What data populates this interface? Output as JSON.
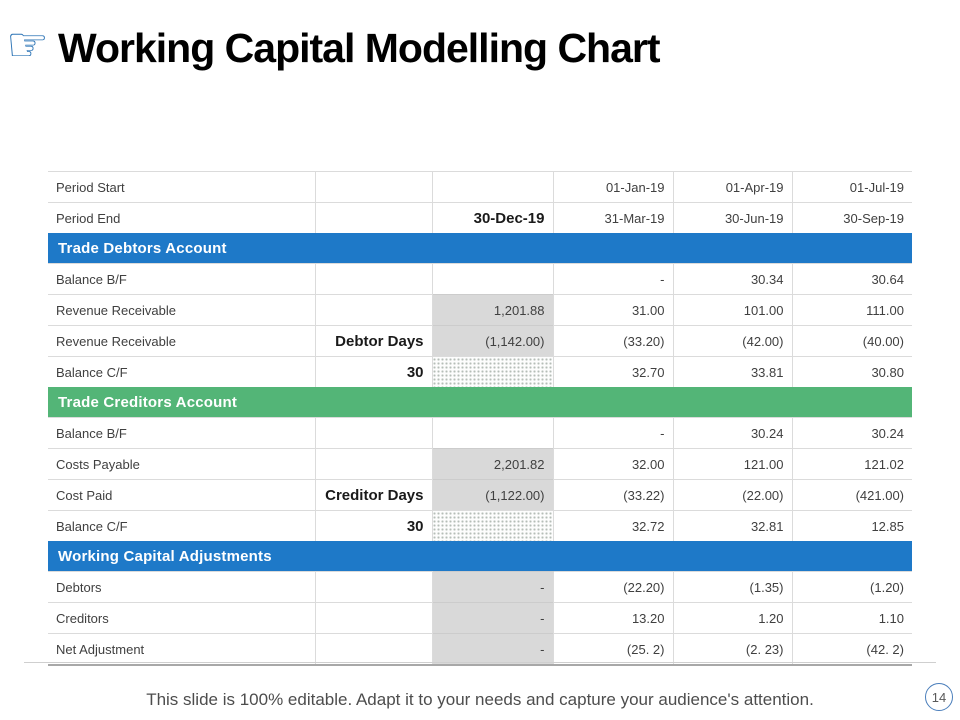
{
  "colors": {
    "header_blue": "#1E79C8",
    "header_green": "#53B577",
    "gray_cell": "#D9D9D9",
    "circle_border": "#4A7EBB",
    "icon_blue": "#2E75B6"
  },
  "title": {
    "text": "Working Capital Modelling Chart",
    "icon": "pointing-hand",
    "icon_glyph": "☞"
  },
  "table": {
    "rows": [
      {
        "label": "Period Start",
        "col2": "",
        "col3": "",
        "col3_style": "plain",
        "values": [
          "01-Jan-19",
          "01-Apr-19",
          "01-Jul-19"
        ]
      },
      {
        "label": "Period End",
        "col2": "",
        "col3": "30-Dec-19",
        "col3_bold": true,
        "col3_style": "plain",
        "values": [
          "31-Mar-19",
          "30-Jun-19",
          "30-Sep-19"
        ]
      },
      {
        "section": "Trade Debtors Account",
        "color": "blue"
      },
      {
        "label": "Balance B/F",
        "col2": "",
        "col3": "",
        "col3_style": "plain",
        "values": [
          "-",
          "30.34",
          "30.64"
        ]
      },
      {
        "label": "Revenue Receivable",
        "col2": "",
        "col3": "1,201.88",
        "col3_style": "gray",
        "values": [
          "31.00",
          "101.00",
          "111.00"
        ]
      },
      {
        "label": "Revenue Receivable",
        "col2": "Debtor Days",
        "col3": "(1,142.00)",
        "col3_style": "gray",
        "values": [
          "(33.20)",
          "(42.00)",
          "(40.00)"
        ]
      },
      {
        "label": "Balance C/F",
        "col2": "30",
        "col3": "",
        "col3_style": "dotted",
        "values": [
          "32.70",
          "33.81",
          "30.80"
        ]
      },
      {
        "section": "Trade Creditors Account",
        "color": "green"
      },
      {
        "label": "Balance B/F",
        "col2": "",
        "col3": "",
        "col3_style": "plain",
        "values": [
          "-",
          "30.24",
          "30.24"
        ]
      },
      {
        "label": "Costs Payable",
        "col2": "",
        "col3": "2,201.82",
        "col3_style": "gray",
        "values": [
          "32.00",
          "121.00",
          "121.02"
        ]
      },
      {
        "label": "Cost Paid",
        "col2": "Creditor Days",
        "col3": "(1,122.00)",
        "col3_style": "gray",
        "values": [
          "(33.22)",
          "(22.00)",
          "(421.00)"
        ]
      },
      {
        "label": "Balance C/F",
        "col2": "30",
        "col3": "",
        "col3_style": "dotted",
        "values": [
          "32.72",
          "32.81",
          "12.85"
        ]
      },
      {
        "section": "Working Capital Adjustments",
        "color": "blue"
      },
      {
        "label": "Debtors",
        "col2": "",
        "col3": "-",
        "col3_style": "gray",
        "values": [
          "(22.20)",
          "(1.35)",
          "(1.20)"
        ]
      },
      {
        "label": "Creditors",
        "col2": "",
        "col3": "-",
        "col3_style": "gray",
        "values": [
          "13.20",
          "1.20",
          "1.10"
        ]
      },
      {
        "label": "Net Adjustment",
        "col2": "",
        "col3": "-",
        "col3_style": "gray",
        "values": [
          "(25. 2)",
          "(2. 23)",
          "(42. 2)"
        ]
      }
    ]
  },
  "footer": {
    "note": "This slide is 100% editable.  Adapt it to your needs and capture your audience's attention.",
    "page_number": "14"
  }
}
